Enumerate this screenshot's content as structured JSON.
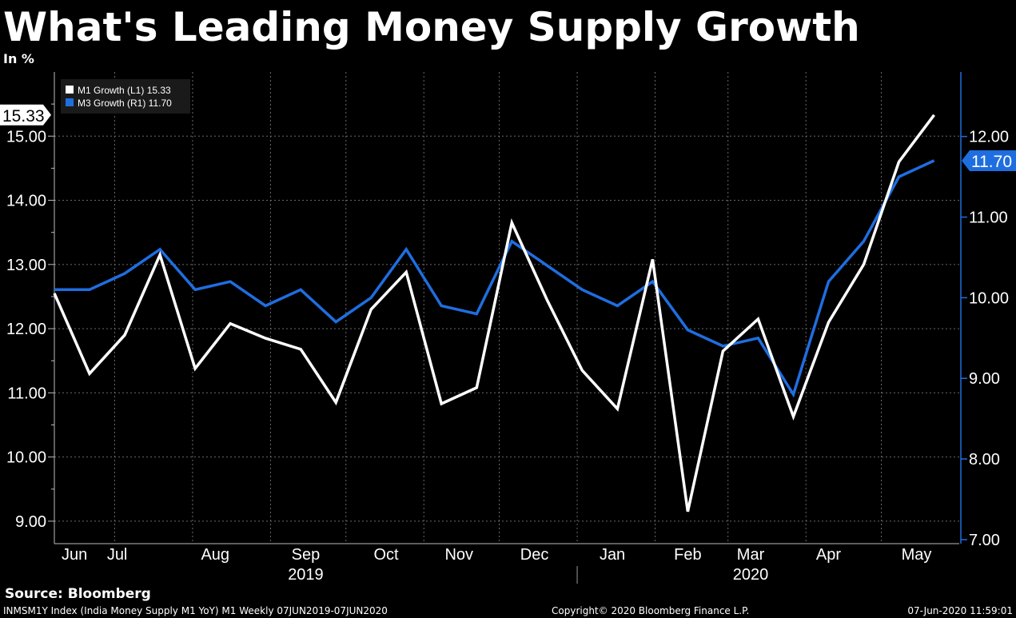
{
  "header": {
    "title": "What's Leading Money Supply Growth",
    "subtitle": "In %"
  },
  "chart_data": {
    "type": "line",
    "grid": true,
    "legend_position": "top-left",
    "series": [
      {
        "name": "M1 Growth (L1)",
        "legend_value": "15.33",
        "last_label": "15.33",
        "axis": "left",
        "color": "#ffffff",
        "values": [
          12.55,
          11.3,
          11.9,
          13.15,
          11.38,
          12.08,
          11.85,
          11.68,
          10.85,
          12.3,
          12.88,
          10.83,
          11.08,
          13.65,
          12.45,
          11.35,
          10.75,
          13.08,
          9.15,
          11.65,
          12.15,
          10.63,
          12.1,
          13.0,
          14.6,
          15.33
        ],
        "x": [
          "2019-06-07",
          "2019-06-21",
          "2019-07-05",
          "2019-07-19",
          "2019-08-02",
          "2019-08-16",
          "2019-08-30",
          "2019-09-13",
          "2019-09-27",
          "2019-10-11",
          "2019-10-25",
          "2019-11-08",
          "2019-11-22",
          "2019-12-06",
          "2019-12-20",
          "2020-01-03",
          "2020-01-17",
          "2020-01-31",
          "2020-02-14",
          "2020-02-28",
          "2020-03-13",
          "2020-03-27",
          "2020-04-10",
          "2020-04-24",
          "2020-05-08",
          "2020-05-22"
        ]
      },
      {
        "name": "M3 Growth (R1)",
        "legend_value": "11.70",
        "last_label": "11.70",
        "axis": "right",
        "color": "#1f6ee0",
        "values": [
          10.1,
          10.1,
          10.3,
          10.6,
          10.1,
          10.2,
          9.9,
          10.1,
          9.7,
          10.0,
          10.6,
          9.9,
          9.8,
          10.7,
          10.4,
          10.1,
          9.9,
          10.2,
          9.6,
          9.4,
          9.5,
          8.8,
          10.2,
          10.7,
          11.5,
          11.7
        ],
        "x": [
          "2019-06-07",
          "2019-06-21",
          "2019-07-05",
          "2019-07-19",
          "2019-08-02",
          "2019-08-16",
          "2019-08-30",
          "2019-09-13",
          "2019-09-27",
          "2019-10-11",
          "2019-10-25",
          "2019-11-08",
          "2019-11-22",
          "2019-12-06",
          "2019-12-20",
          "2020-01-03",
          "2020-01-17",
          "2020-01-31",
          "2020-02-14",
          "2020-02-28",
          "2020-03-13",
          "2020-03-27",
          "2020-04-10",
          "2020-04-24",
          "2020-05-08",
          "2020-05-22"
        ]
      }
    ],
    "left_axis": {
      "ticks": [
        "9.00",
        "10.00",
        "11.00",
        "12.00",
        "13.00",
        "14.00",
        "15.00"
      ],
      "ylim": [
        8.65,
        16.0
      ]
    },
    "right_axis": {
      "ticks": [
        "7.00",
        "8.00",
        "9.00",
        "10.00",
        "11.00",
        "12.00"
      ],
      "ylim": [
        6.95,
        12.8
      ]
    },
    "x_labels": [
      {
        "label": "Jun",
        "date": "2019-06-15"
      },
      {
        "label": "Jul",
        "date": "2019-07-02"
      },
      {
        "label": "Aug",
        "date": "2019-08-10"
      },
      {
        "label": "Sep",
        "date": "2019-09-15"
      },
      {
        "label": "Oct",
        "date": "2019-10-17"
      },
      {
        "label": "Nov",
        "date": "2019-11-15"
      },
      {
        "label": "Dec",
        "date": "2019-12-15"
      },
      {
        "label": "Jan",
        "date": "2020-01-15"
      },
      {
        "label": "Feb",
        "date": "2020-02-14"
      },
      {
        "label": "Mar",
        "date": "2020-03-10"
      },
      {
        "label": "Apr",
        "date": "2020-04-10"
      },
      {
        "label": "May",
        "date": "2020-05-15"
      }
    ],
    "years": [
      {
        "label": "2019",
        "date": "2019-09-15"
      },
      {
        "label": "2020",
        "date": "2020-03-10"
      }
    ],
    "x_range": [
      "2019-06-07",
      "2020-06-01"
    ]
  },
  "footer": {
    "source": "Source: Bloomberg",
    "ticker": "INMSM1Y Index (India Money Supply M1 YoY) M1  Weekly 07JUN2019-07JUN2020",
    "copyright": "Copyright© 2020 Bloomberg Finance L.P.",
    "timestamp": "07-Jun-2020 11:59:01"
  }
}
